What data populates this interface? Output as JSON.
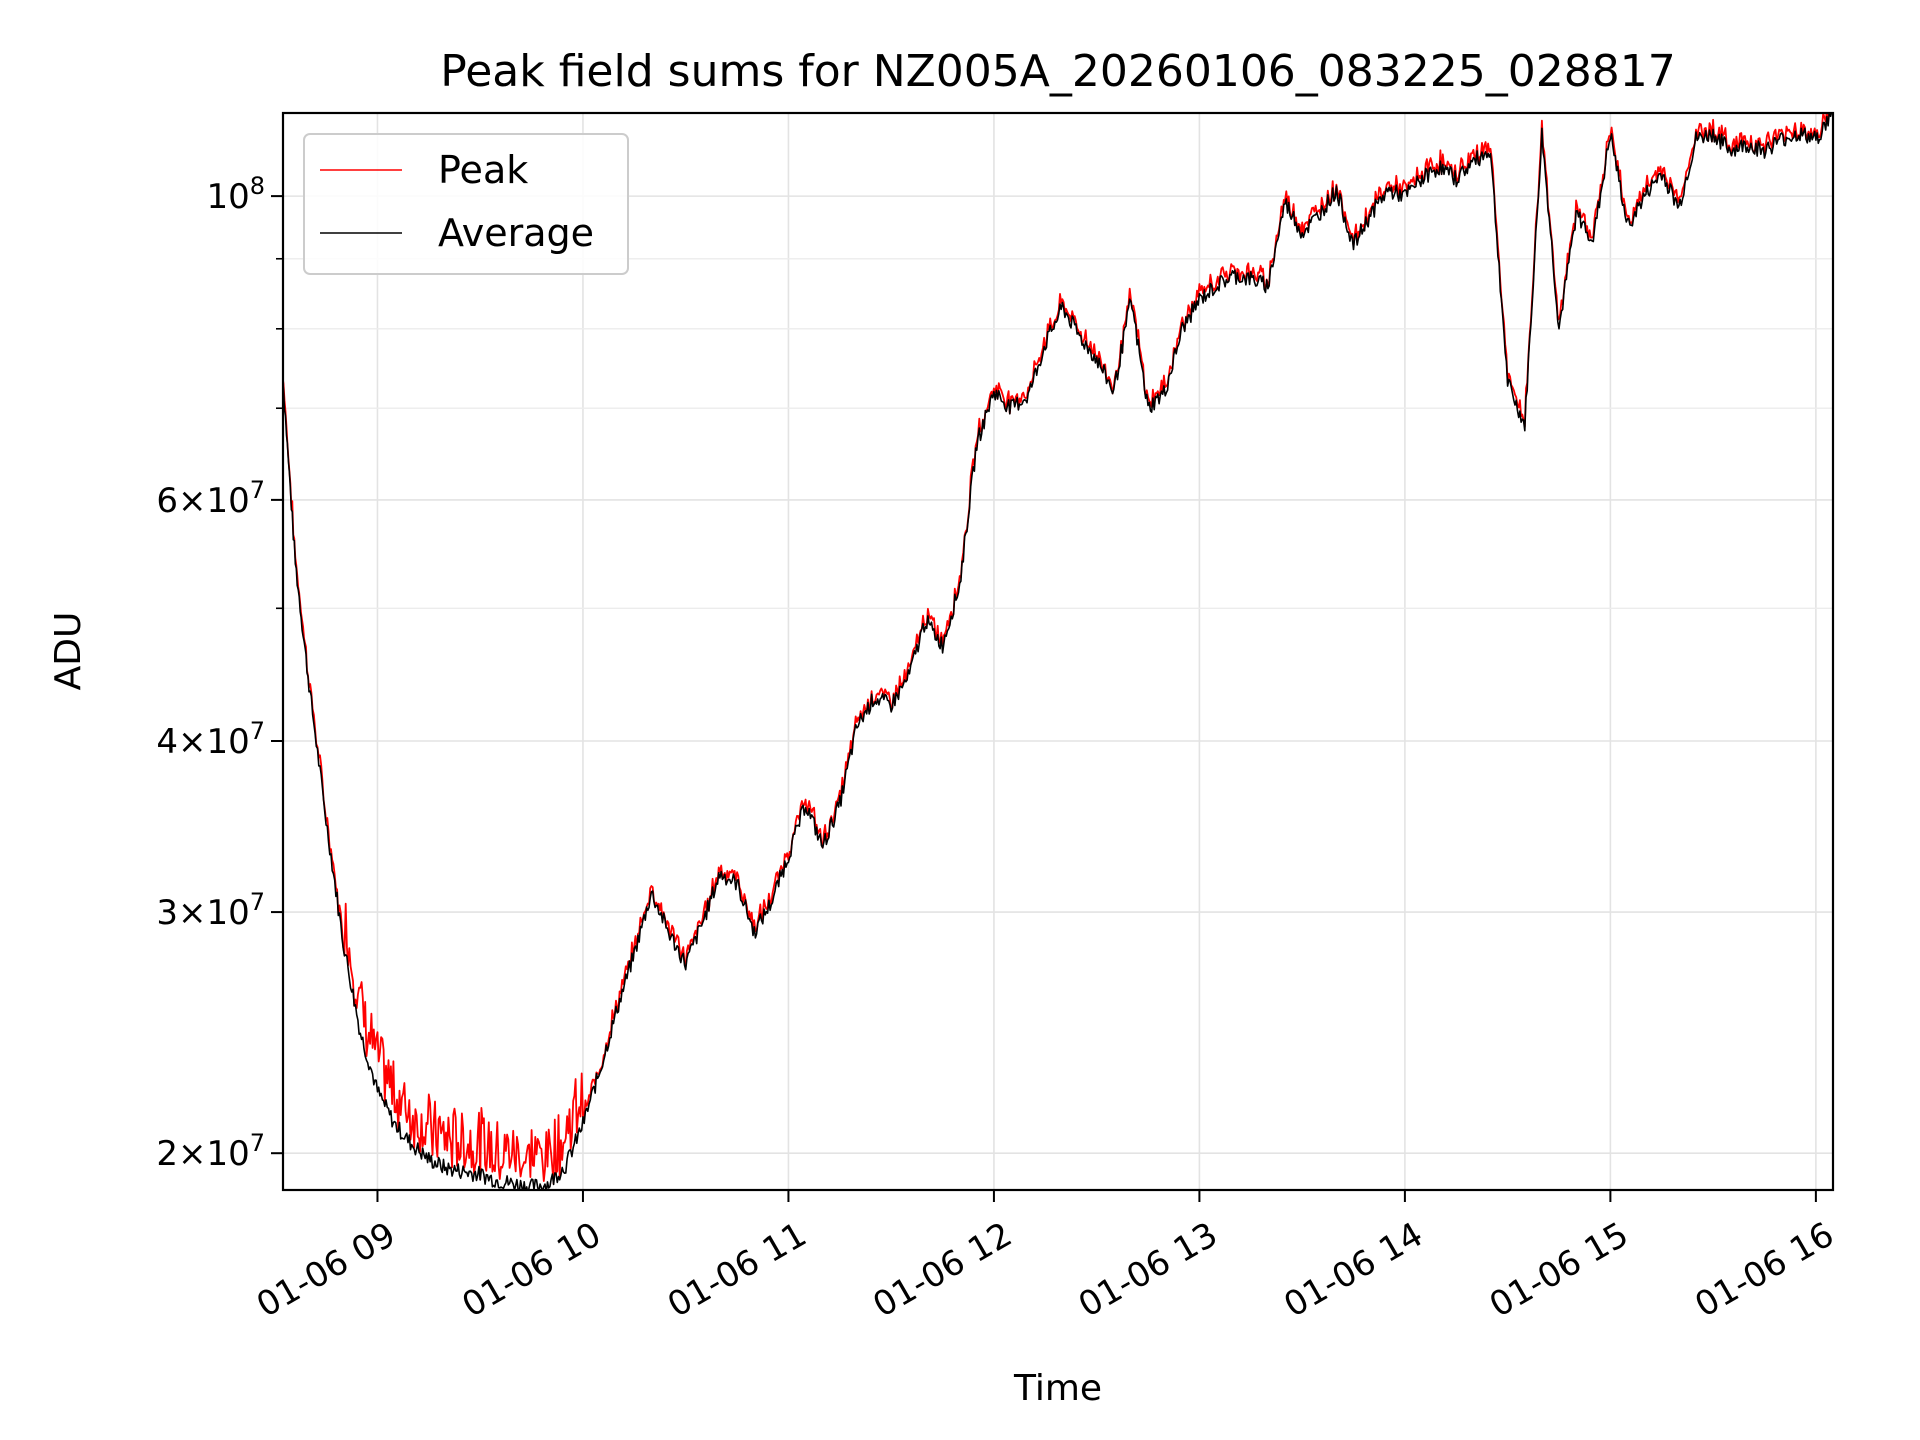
{
  "chart_data": {
    "type": "line",
    "title": "Peak field sums for NZ005A_20260106_083225_028817",
    "xlabel": "Time",
    "ylabel": "ADU",
    "y_scale": "log",
    "xlim": [
      "2026-01-06 08:32:25",
      "2026-01-06 16:05:00"
    ],
    "ylim": [
      18800000,
      115000000
    ],
    "x_ticks": [
      {
        "value": "2026-01-06 09:00",
        "label": "01-06 09"
      },
      {
        "value": "2026-01-06 10:00",
        "label": "01-06 10"
      },
      {
        "value": "2026-01-06 11:00",
        "label": "01-06 11"
      },
      {
        "value": "2026-01-06 12:00",
        "label": "01-06 12"
      },
      {
        "value": "2026-01-06 13:00",
        "label": "01-06 13"
      },
      {
        "value": "2026-01-06 14:00",
        "label": "01-06 14"
      },
      {
        "value": "2026-01-06 15:00",
        "label": "01-06 15"
      },
      {
        "value": "2026-01-06 16:00",
        "label": "01-06 16"
      }
    ],
    "y_ticks": [
      {
        "value": 20000000,
        "mantissa": "2",
        "exponent": "7"
      },
      {
        "value": 30000000,
        "mantissa": "3",
        "exponent": "7"
      },
      {
        "value": 40000000,
        "mantissa": "4",
        "exponent": "7"
      },
      {
        "value": 60000000,
        "mantissa": "6",
        "exponent": "7"
      },
      {
        "value": 100000000,
        "mantissa": "",
        "exponent": "8"
      }
    ],
    "y_minor_ticks": [
      50000000,
      70000000,
      80000000,
      90000000
    ],
    "grid": true,
    "legend_position": "top-left",
    "series": [
      {
        "name": "Peak",
        "color": "#ff0000"
      },
      {
        "name": "Average",
        "color": "#000000"
      }
    ],
    "x": [
      "08:32",
      "08:36",
      "08:40",
      "08:45",
      "08:50",
      "08:55",
      "09:00",
      "09:05",
      "09:10",
      "09:15",
      "09:20",
      "09:25",
      "09:30",
      "09:35",
      "09:40",
      "09:45",
      "09:50",
      "09:55",
      "10:00",
      "10:05",
      "10:10",
      "10:15",
      "10:20",
      "10:25",
      "10:30",
      "10:35",
      "10:40",
      "10:45",
      "10:50",
      "10:55",
      "11:00",
      "11:05",
      "11:10",
      "11:15",
      "11:20",
      "11:25",
      "11:30",
      "11:35",
      "11:40",
      "11:45",
      "11:50",
      "11:55",
      "12:00",
      "12:05",
      "12:10",
      "12:15",
      "12:20",
      "12:25",
      "12:30",
      "12:35",
      "12:40",
      "12:45",
      "12:50",
      "12:55",
      "13:00",
      "13:05",
      "13:10",
      "13:15",
      "13:20",
      "13:25",
      "13:30",
      "13:35",
      "13:40",
      "13:45",
      "13:50",
      "13:55",
      "14:00",
      "14:05",
      "14:10",
      "14:15",
      "14:20",
      "14:25",
      "14:30",
      "14:35",
      "14:40",
      "14:45",
      "14:50",
      "14:55",
      "15:00",
      "15:05",
      "15:10",
      "15:15",
      "15:20",
      "15:25",
      "15:30",
      "15:35",
      "15:40",
      "15:45",
      "15:50",
      "15:55",
      "16:00",
      "16:05"
    ],
    "average": [
      76000000,
      54000000,
      44000000,
      35000000,
      28500000,
      24500000,
      22200000,
      21000000,
      20300000,
      19800000,
      19500000,
      19400000,
      19300000,
      19100000,
      19000000,
      18900000,
      19000000,
      19600000,
      21000000,
      23000000,
      25500000,
      28000000,
      31000000,
      29000000,
      27500000,
      29500000,
      32000000,
      31500000,
      29000000,
      30500000,
      33000000,
      36000000,
      33500000,
      36000000,
      41000000,
      43000000,
      42500000,
      44500000,
      49000000,
      47000000,
      52000000,
      66000000,
      72000000,
      70000000,
      71500000,
      78000000,
      83000000,
      79000000,
      76000000,
      72000000,
      84000000,
      70000000,
      72000000,
      80000000,
      84000000,
      86000000,
      87500000,
      87000000,
      86000000,
      99000000,
      94000000,
      97000000,
      101000000,
      92000000,
      97000000,
      101000000,
      100000000,
      103000000,
      105000000,
      103000000,
      106000000,
      108000000,
      73000000,
      68000000,
      111000000,
      80000000,
      97000000,
      93000000,
      111000000,
      95000000,
      100000000,
      104000000,
      98000000,
      110000000,
      111000000,
      108000000,
      109000000,
      108000000,
      110000000,
      111000000,
      110000000,
      115000000
    ]
  },
  "legend": {
    "items": [
      {
        "label": "Peak",
        "color": "#ff0000"
      },
      {
        "label": "Average",
        "color": "#000000"
      }
    ]
  }
}
